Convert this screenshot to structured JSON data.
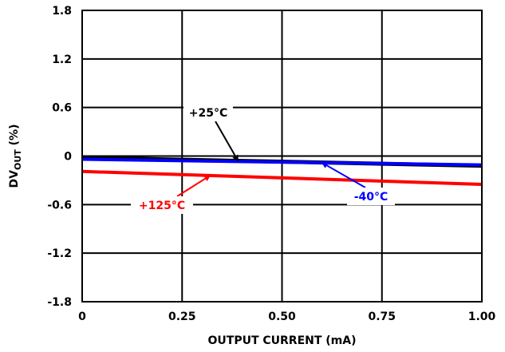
{
  "chart_data": {
    "type": "line",
    "xlabel": "OUTPUT CURRENT (mA)",
    "ylabel_main": "DV",
    "ylabel_sub": "OUT",
    "ylabel_suffix": " (%)",
    "xlim": [
      0,
      1.0
    ],
    "ylim": [
      -1.8,
      1.8
    ],
    "x_ticks": [
      {
        "value": 0,
        "label": "0"
      },
      {
        "value": 0.25,
        "label": "0.25"
      },
      {
        "value": 0.5,
        "label": "0.50"
      },
      {
        "value": 0.75,
        "label": "0.75"
      },
      {
        "value": 1.0,
        "label": "1.00"
      }
    ],
    "y_ticks": [
      {
        "value": 1.8,
        "label": "1.8"
      },
      {
        "value": 1.2,
        "label": "1.2"
      },
      {
        "value": 0.6,
        "label": "0.6"
      },
      {
        "value": 0,
        "label": "0"
      },
      {
        "value": -0.6,
        "label": "-0.6"
      },
      {
        "value": -1.2,
        "label": "-1.2"
      },
      {
        "value": -1.8,
        "label": "-1.8"
      }
    ],
    "grid": true,
    "series": [
      {
        "name": "+25°C",
        "color": "#000000",
        "x": [
          0,
          1.0
        ],
        "y": [
          -0.02,
          -0.12
        ]
      },
      {
        "name": "-40°C",
        "color": "#0000ff",
        "x": [
          0,
          1.0
        ],
        "y": [
          -0.04,
          -0.11
        ]
      },
      {
        "name": "+125°C",
        "color": "#ff0000",
        "x": [
          0,
          1.0
        ],
        "y": [
          -0.19,
          -0.35
        ]
      }
    ],
    "annotations": [
      {
        "series": 0,
        "text": "+25°C",
        "point_x": 0.39,
        "color": "#000000"
      },
      {
        "series": 1,
        "text": "-40°C",
        "point_x": 0.6,
        "color": "#0000ff"
      },
      {
        "series": 2,
        "text": "+125°C",
        "point_x": 0.32,
        "color": "#ff0000"
      }
    ]
  }
}
